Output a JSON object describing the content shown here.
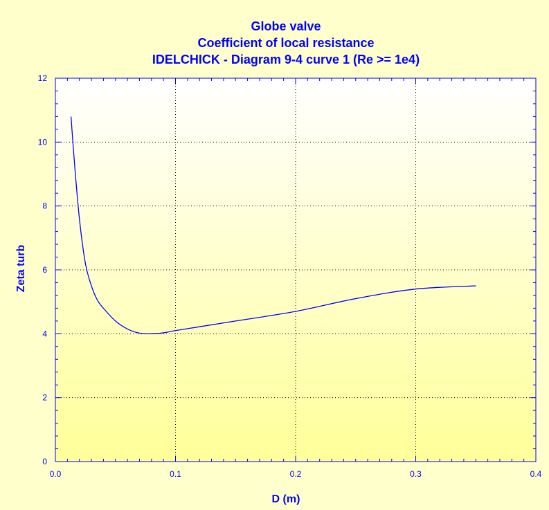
{
  "chart_data": {
    "type": "line",
    "title": [
      "Globe valve",
      "Coefficient of local resistance",
      "IDELCHICK - Diagram 9-4 curve 1 (Re >= 1e4)"
    ],
    "xlabel": "D (m)",
    "ylabel": "Zeta turb",
    "xlim": [
      0,
      0.4
    ],
    "ylim": [
      0,
      12
    ],
    "xticks": [
      0,
      0.1,
      0.2,
      0.3,
      0.4
    ],
    "xtick_labels": [
      "0.0",
      "0.1",
      "0.2",
      "0.3",
      "0.4"
    ],
    "yticks": [
      0,
      2,
      4,
      6,
      8,
      10,
      12
    ],
    "ytick_labels": [
      "0",
      "2",
      "4",
      "6",
      "8",
      "10",
      "12"
    ],
    "grid": true,
    "series": [
      {
        "x": [
          0.013,
          0.016,
          0.02,
          0.025,
          0.03,
          0.035,
          0.04,
          0.05,
          0.06,
          0.07,
          0.08,
          0.09,
          0.1,
          0.12,
          0.15,
          0.2,
          0.25,
          0.3,
          0.35
        ],
        "y": [
          10.8,
          9.3,
          7.6,
          6.2,
          5.5,
          5.05,
          4.8,
          4.4,
          4.15,
          4.02,
          4.0,
          4.03,
          4.1,
          4.22,
          4.4,
          4.7,
          5.1,
          5.4,
          5.5
        ]
      }
    ],
    "colors": {
      "line": "#0000ff",
      "text": "#0000ff",
      "plot_top": "#ffffff",
      "plot_bottom": "#ffff99",
      "background": "#ffffcc"
    }
  }
}
